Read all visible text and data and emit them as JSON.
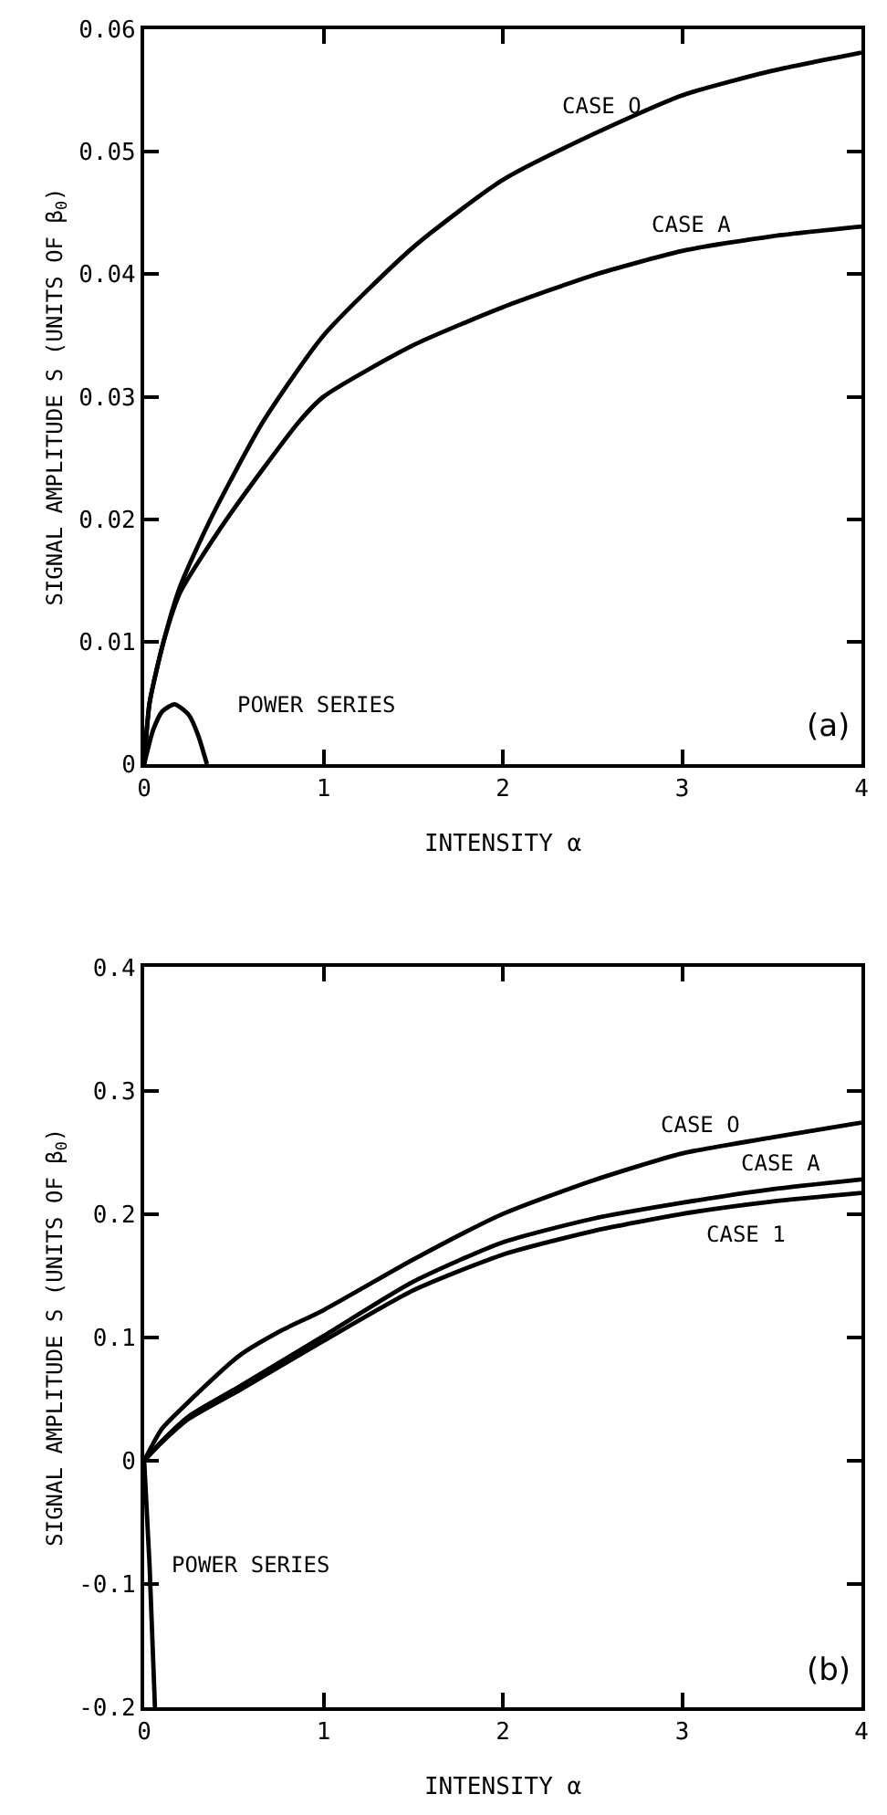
{
  "chart_data": [
    {
      "type": "line",
      "xlabel": "INTENSITY α",
      "ylabel": "SIGNAL AMPLITUDE S (UNITS OF β$_{0}$)",
      "xlim": [
        0,
        4
      ],
      "xticks": [
        0,
        1,
        2,
        3,
        4
      ],
      "ylim": [
        0,
        0.06
      ],
      "yticks": [
        0,
        0.01,
        0.02,
        0.03,
        0.04,
        0.05,
        0.06
      ],
      "grid": false,
      "marker": "none",
      "line_style": "solid",
      "annotations": [
        "(a)"
      ],
      "series": [
        {
          "name": "CASE O",
          "color": "#000000",
          "x": [
            0,
            0.03,
            0.108,
            0.2,
            0.37,
            0.66,
            1,
            1.5,
            2,
            2.5,
            3,
            3.5,
            4
          ],
          "values": [
            0,
            0.005,
            0.01,
            0.0145,
            0.02,
            0.0279,
            0.035,
            0.0422,
            0.0477,
            0.0514,
            0.0546,
            0.0566,
            0.0581
          ]
        },
        {
          "name": "CASE A",
          "color": "#000000",
          "x": [
            0,
            0.03,
            0.108,
            0.2,
            0.46,
            0.86,
            1,
            1.5,
            2,
            2.5,
            3,
            3.5,
            4
          ],
          "values": [
            0,
            0.005,
            0.01,
            0.014,
            0.02,
            0.0279,
            0.03,
            0.0342,
            0.0373,
            0.0399,
            0.0419,
            0.0431,
            0.0439
          ]
        },
        {
          "name": "POWER SERIES",
          "color": "#000000",
          "x": [
            0,
            0.05,
            0.1,
            0.17,
            0.25,
            0.3,
            0.35
          ],
          "values": [
            0,
            0.0028,
            0.0043,
            0.0049,
            0.004,
            0.0024,
            0
          ]
        }
      ]
    },
    {
      "type": "line",
      "xlabel": "INTENSITY α",
      "ylabel": "SIGNAL AMPLITUDE S (UNITS OF β$_{0}$)",
      "xlim": [
        0,
        4
      ],
      "xticks": [
        0,
        1,
        2,
        3,
        4
      ],
      "ylim": [
        -0.2,
        0.4
      ],
      "yticks": [
        -0.2,
        -0.1,
        0,
        0.1,
        0.2,
        0.3,
        0.4
      ],
      "grid": false,
      "marker": "none",
      "line_style": "solid",
      "annotations": [
        "(b)"
      ],
      "series": [
        {
          "name": "CASE O",
          "color": "#000000",
          "x": [
            0,
            0.1,
            0.25,
            0.53,
            0.76,
            1,
            1.5,
            2,
            2.5,
            3,
            3.5,
            4
          ],
          "values": [
            0,
            0.026,
            0.048,
            0.085,
            0.105,
            0.122,
            0.163,
            0.2,
            0.227,
            0.249,
            0.262,
            0.274
          ]
        },
        {
          "name": "CASE A",
          "color": "#000000",
          "x": [
            0,
            0.1,
            0.25,
            0.53,
            1,
            1.5,
            2,
            2.5,
            3,
            3.5,
            4
          ],
          "values": [
            0,
            0.016,
            0.036,
            0.06,
            0.101,
            0.145,
            0.177,
            0.196,
            0.209,
            0.22,
            0.228
          ]
        },
        {
          "name": "CASE 1",
          "color": "#000000",
          "x": [
            0,
            0.1,
            0.25,
            0.53,
            1,
            1.5,
            2,
            2.5,
            3,
            3.5,
            4
          ],
          "values": [
            0,
            0.015,
            0.034,
            0.057,
            0.097,
            0.138,
            0.167,
            0.186,
            0.2,
            0.21,
            0.217
          ]
        },
        {
          "name": "POWER SERIES",
          "color": "#000000",
          "x": [
            0,
            0.03,
            0.06
          ],
          "values": [
            0,
            -0.085,
            -0.2
          ]
        }
      ]
    }
  ]
}
